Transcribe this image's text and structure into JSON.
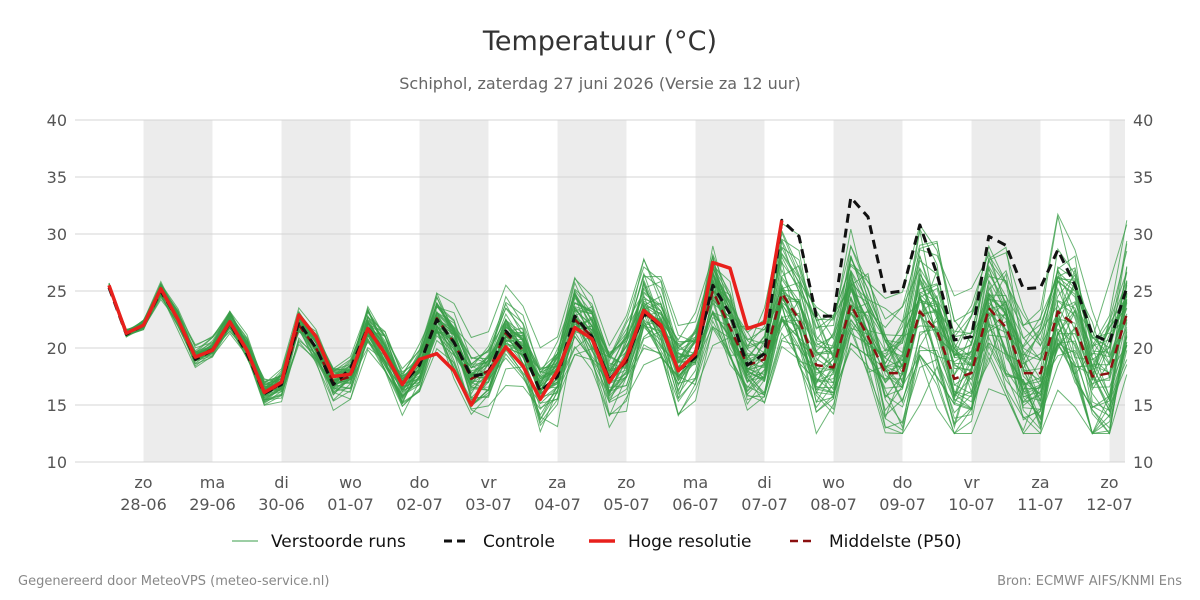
{
  "chart_data": {
    "type": "line",
    "title": "Temperatuur (°C)",
    "subtitle": "Schiphol, zaterdag 27 juni 2026 (Versie za 12 uur)",
    "ylim": [
      10,
      40
    ],
    "yticks": [
      10,
      15,
      20,
      25,
      30,
      35,
      40
    ],
    "grid": true,
    "legend_position": "bottom",
    "x_start": "2026-06-27 12:00",
    "x_step_hours": 6,
    "day_ticks": [
      {
        "day": "zo",
        "date": "28-06"
      },
      {
        "day": "ma",
        "date": "29-06"
      },
      {
        "day": "di",
        "date": "30-06"
      },
      {
        "day": "wo",
        "date": "01-07"
      },
      {
        "day": "do",
        "date": "02-07"
      },
      {
        "day": "vr",
        "date": "03-07"
      },
      {
        "day": "za",
        "date": "04-07"
      },
      {
        "day": "zo",
        "date": "05-07"
      },
      {
        "day": "ma",
        "date": "06-07"
      },
      {
        "day": "di",
        "date": "07-07"
      },
      {
        "day": "wo",
        "date": "08-07"
      },
      {
        "day": "do",
        "date": "09-07"
      },
      {
        "day": "vr",
        "date": "10-07"
      },
      {
        "day": "za",
        "date": "11-07"
      },
      {
        "day": "zo",
        "date": "12-07"
      }
    ],
    "series": [
      {
        "name": "Controle",
        "color": "#111111",
        "dash": true,
        "values": [
          25.3,
          21.2,
          22.0,
          25.0,
          22.5,
          19.0,
          19.8,
          22.2,
          19.5,
          16.0,
          16.8,
          22.3,
          20.0,
          16.8,
          18.2,
          21.8,
          19.5,
          16.8,
          18.5,
          22.5,
          20.5,
          17.5,
          17.8,
          21.5,
          19.8,
          16.2,
          17.5,
          22.8,
          21.0,
          17.2,
          19.0,
          23.0,
          22.0,
          18.0,
          19.2,
          25.5,
          23.0,
          18.5,
          19.5,
          31.2,
          29.8,
          22.8,
          22.8,
          33.2,
          31.5,
          24.8,
          25.0,
          30.8,
          26.5,
          20.7,
          21.0,
          29.8,
          29.0,
          25.2,
          25.3,
          28.6,
          25.5,
          21.2,
          20.5,
          25.3
        ]
      },
      {
        "name": "Hoge resolutie",
        "color": "#e8201c",
        "dash": false,
        "values": [
          25.5,
          21.3,
          22.0,
          25.2,
          22.5,
          19.2,
          19.8,
          22.3,
          19.8,
          16.1,
          17.0,
          22.9,
          21.0,
          17.5,
          17.7,
          21.7,
          19.5,
          16.8,
          19.0,
          19.5,
          18.0,
          15.0,
          17.8,
          20.1,
          18.4,
          15.5,
          18.0,
          21.8,
          20.8,
          17.0,
          19.2,
          23.3,
          22.0,
          18.0,
          19.5,
          27.5,
          27.0,
          21.7,
          22.2,
          31.2
        ]
      },
      {
        "name": "Middelste (P50)",
        "color": "#8b1010",
        "dash": true,
        "values": [
          25.4,
          21.3,
          22.0,
          25.0,
          22.5,
          19.2,
          19.9,
          22.2,
          19.8,
          16.1,
          16.8,
          22.0,
          20.0,
          17.0,
          17.5,
          21.6,
          19.5,
          16.8,
          18.5,
          22.6,
          20.5,
          17.3,
          18.0,
          21.3,
          19.8,
          16.2,
          17.5,
          22.5,
          21.0,
          17.3,
          18.8,
          23.2,
          21.8,
          18.0,
          19.5,
          25.0,
          21.8,
          18.5,
          19.0,
          24.8,
          22.5,
          18.5,
          18.3,
          23.8,
          21.0,
          17.8,
          17.8,
          23.2,
          21.5,
          17.3,
          17.8,
          23.5,
          21.8,
          17.8,
          17.8,
          23.2,
          22.0,
          17.5,
          17.8,
          23.0
        ]
      }
    ],
    "ensemble": {
      "name": "Verstoorde runs",
      "color": "#3a9e48",
      "members": 50
    }
  },
  "legend": [
    {
      "label": "Verstoorde runs",
      "color": "#3a9e48",
      "style": "thin"
    },
    {
      "label": "Controle",
      "color": "#111111",
      "style": "dash"
    },
    {
      "label": "Hoge resolutie",
      "color": "#e8201c",
      "style": "solid"
    },
    {
      "label": "Middelste (P50)",
      "color": "#8b1010",
      "style": "dash"
    }
  ],
  "footer": {
    "left": "Gegenereerd door MeteoVPS (meteo-service.nl)",
    "right": "Bron: ECMWF AIFS/KNMI Ens"
  }
}
